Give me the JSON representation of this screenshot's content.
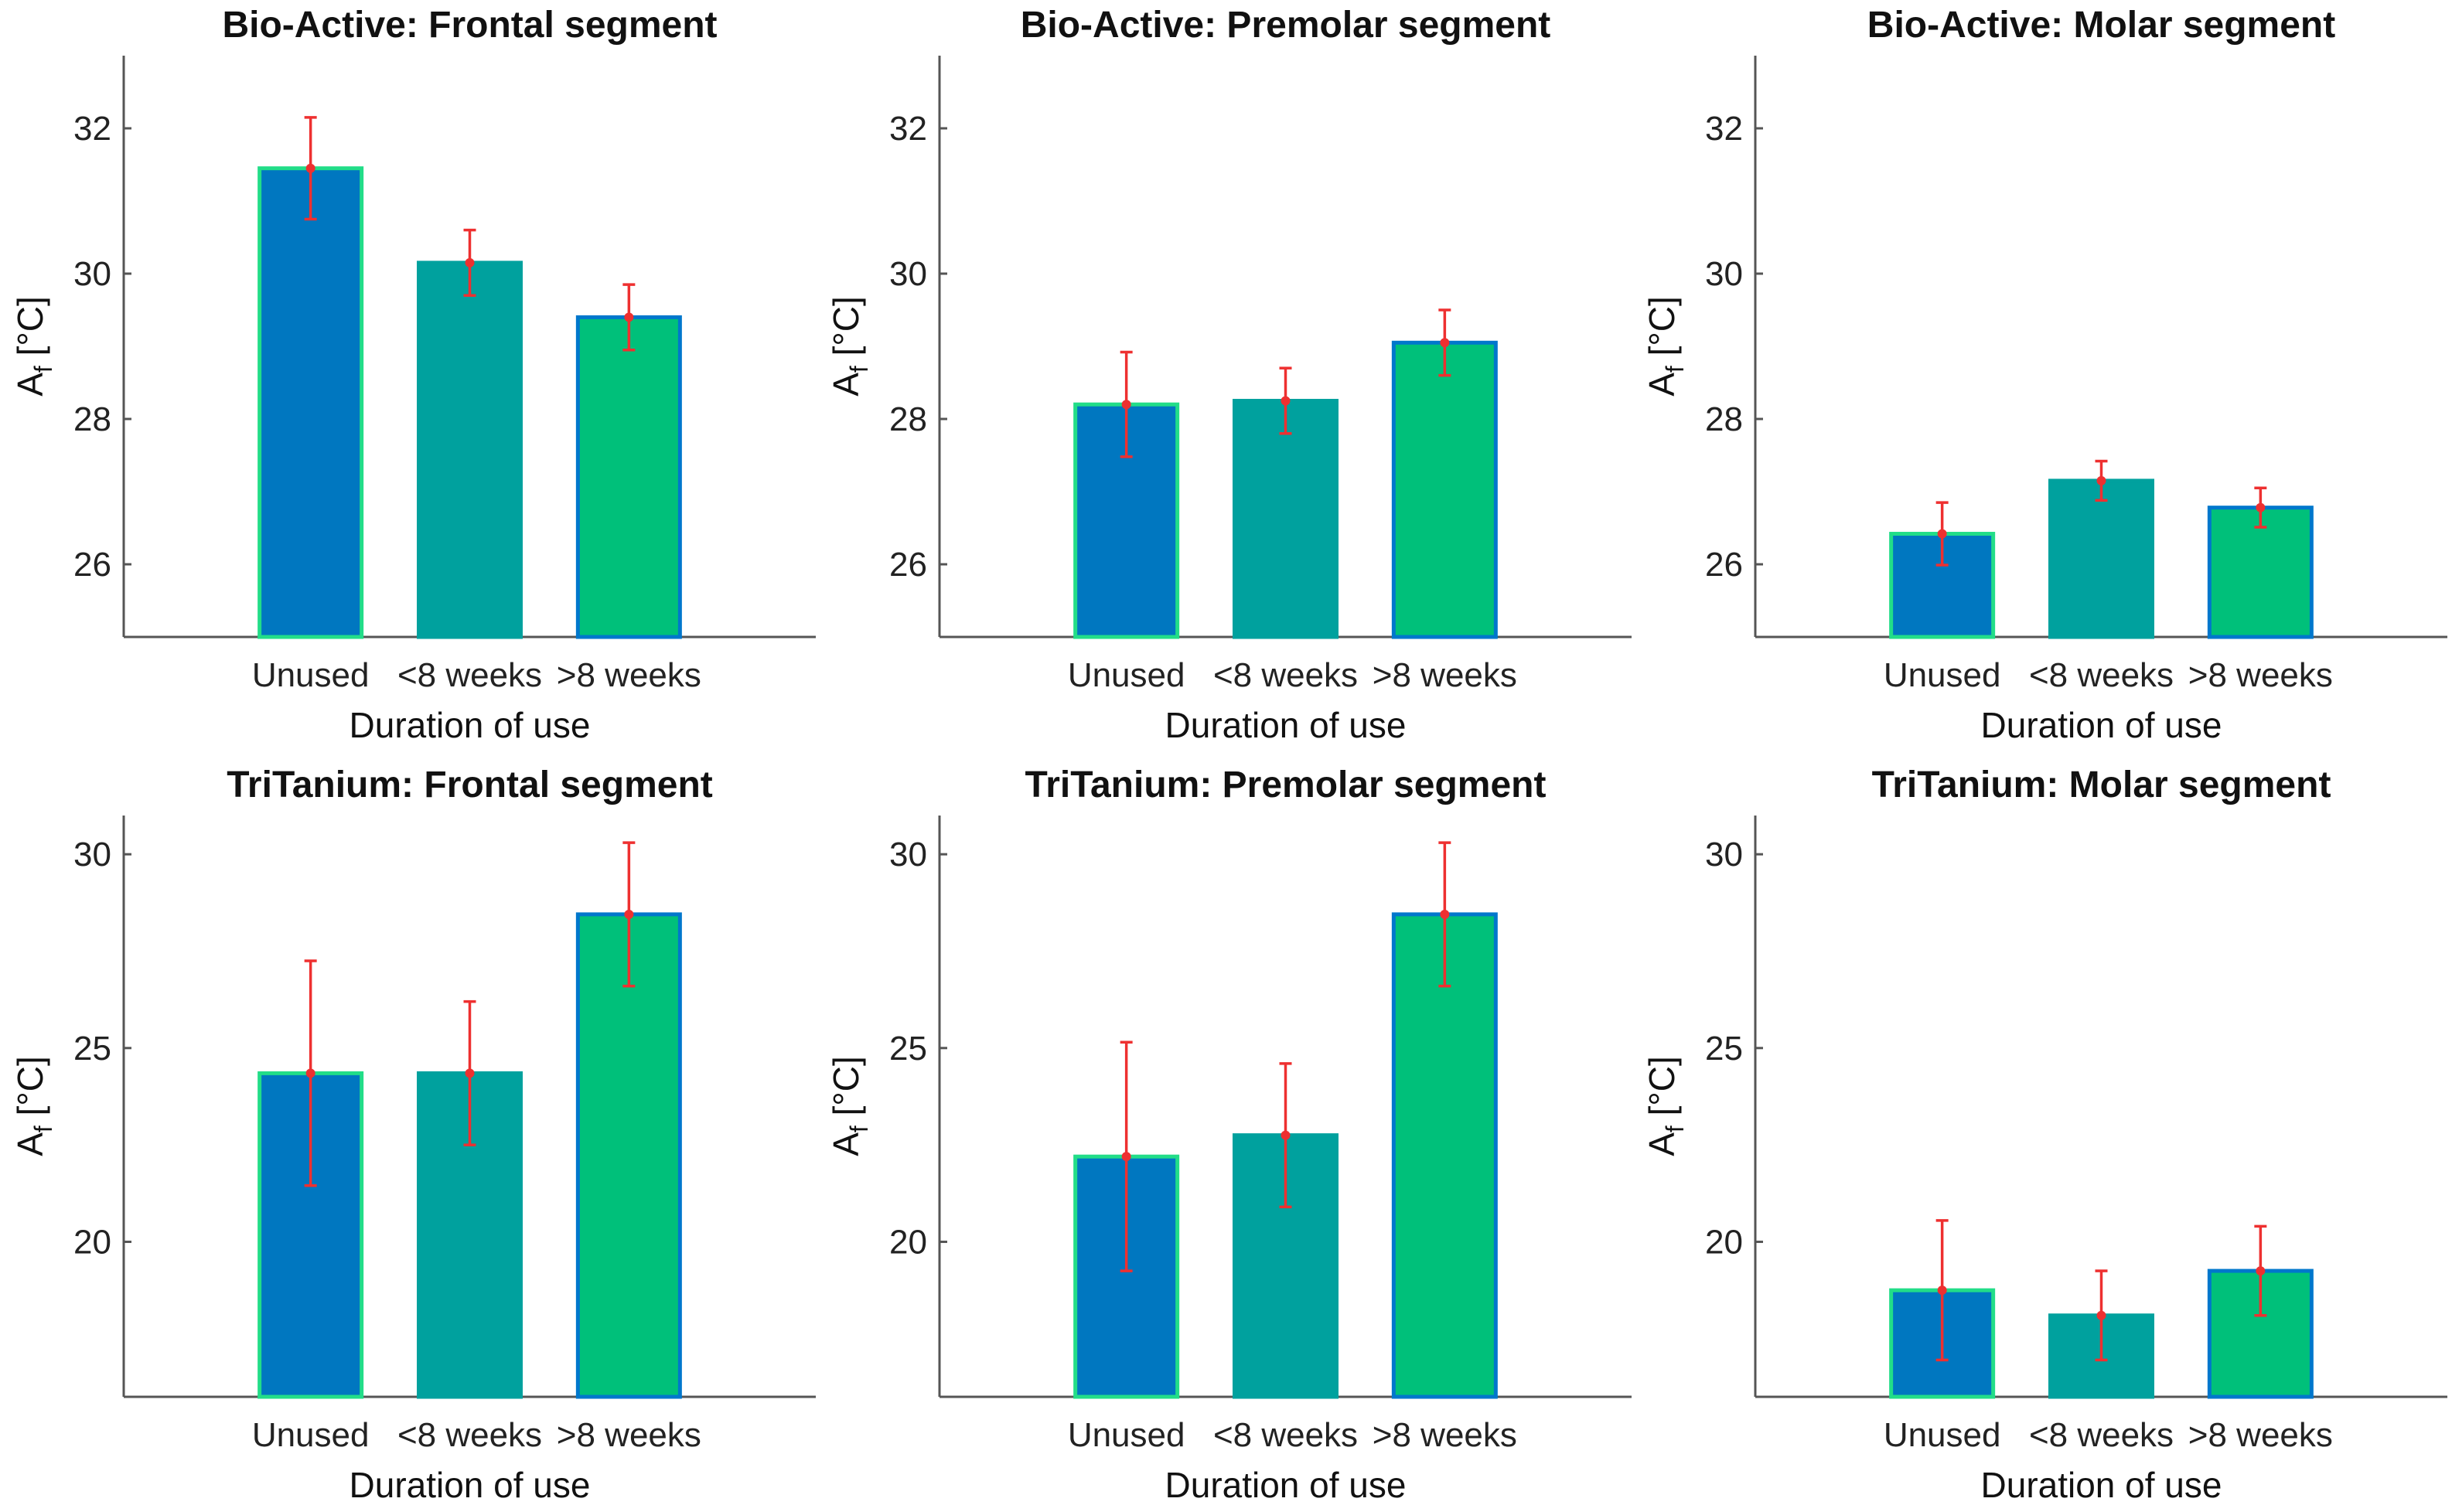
{
  "colors": {
    "unused": "#0077c0",
    "lt8": "#00a19e",
    "gt8": "#00c07a",
    "edge_unused": "#22dd88",
    "edge_lt8": "#00a19e",
    "edge_gt8": "#0077cc",
    "error": "#ee3030"
  },
  "chart_data": [
    {
      "type": "bar",
      "title": "Bio-Active: Frontal segment",
      "xlabel": "Duration of use",
      "ylabel_main": "A",
      "ylabel_sub": "f",
      "ylabel_unit": " [°C]",
      "categories": [
        "Unused",
        "<8 weeks",
        ">8 weeks"
      ],
      "values": [
        31.45,
        30.15,
        29.4
      ],
      "errors": [
        0.7,
        0.45,
        0.45
      ],
      "ylim": [
        25,
        33
      ],
      "yticks": [
        26,
        28,
        30,
        32
      ]
    },
    {
      "type": "bar",
      "title": "Bio-Active: Premolar segment",
      "xlabel": "Duration of use",
      "ylabel_main": "A",
      "ylabel_sub": "f",
      "ylabel_unit": " [°C]",
      "categories": [
        "Unused",
        "<8 weeks",
        ">8 weeks"
      ],
      "values": [
        28.2,
        28.25,
        29.05
      ],
      "errors": [
        0.72,
        0.45,
        0.45
      ],
      "ylim": [
        25,
        33
      ],
      "yticks": [
        26,
        28,
        30,
        32
      ]
    },
    {
      "type": "bar",
      "title": "Bio-Active: Molar segment",
      "xlabel": "Duration of use",
      "ylabel_main": "A",
      "ylabel_sub": "f",
      "ylabel_unit": " [°C]",
      "categories": [
        "Unused",
        "<8 weeks",
        ">8 weeks"
      ],
      "values": [
        26.42,
        27.15,
        26.78
      ],
      "errors": [
        0.43,
        0.27,
        0.27
      ],
      "ylim": [
        25,
        33
      ],
      "yticks": [
        26,
        28,
        30,
        32
      ]
    },
    {
      "type": "bar",
      "title": "TriTanium: Frontal segment",
      "xlabel": "Duration of use",
      "ylabel_main": "A",
      "ylabel_sub": "f",
      "ylabel_unit": " [°C]",
      "categories": [
        "Unused",
        "<8 weeks",
        ">8 weeks"
      ],
      "values": [
        24.35,
        24.35,
        28.45
      ],
      "errors": [
        2.9,
        1.85,
        1.85
      ],
      "ylim": [
        16,
        31
      ],
      "yticks": [
        20,
        25,
        30
      ]
    },
    {
      "type": "bar",
      "title": "TriTanium: Premolar segment",
      "xlabel": "Duration of use",
      "ylabel_main": "A",
      "ylabel_sub": "f",
      "ylabel_unit": " [°C]",
      "categories": [
        "Unused",
        "<8 weeks",
        ">8 weeks"
      ],
      "values": [
        22.2,
        22.75,
        28.45
      ],
      "errors": [
        2.95,
        1.85,
        1.85
      ],
      "ylim": [
        16,
        31
      ],
      "yticks": [
        20,
        25,
        30
      ]
    },
    {
      "type": "bar",
      "title": "TriTanium: Molar segment",
      "xlabel": "Duration of use",
      "ylabel_main": "A",
      "ylabel_sub": "f",
      "ylabel_unit": " [°C]",
      "categories": [
        "Unused",
        "<8 weeks",
        ">8 weeks"
      ],
      "values": [
        18.75,
        18.1,
        19.25
      ],
      "errors": [
        1.8,
        1.15,
        1.15
      ],
      "ylim": [
        16,
        31
      ],
      "yticks": [
        20,
        25,
        30
      ]
    }
  ]
}
